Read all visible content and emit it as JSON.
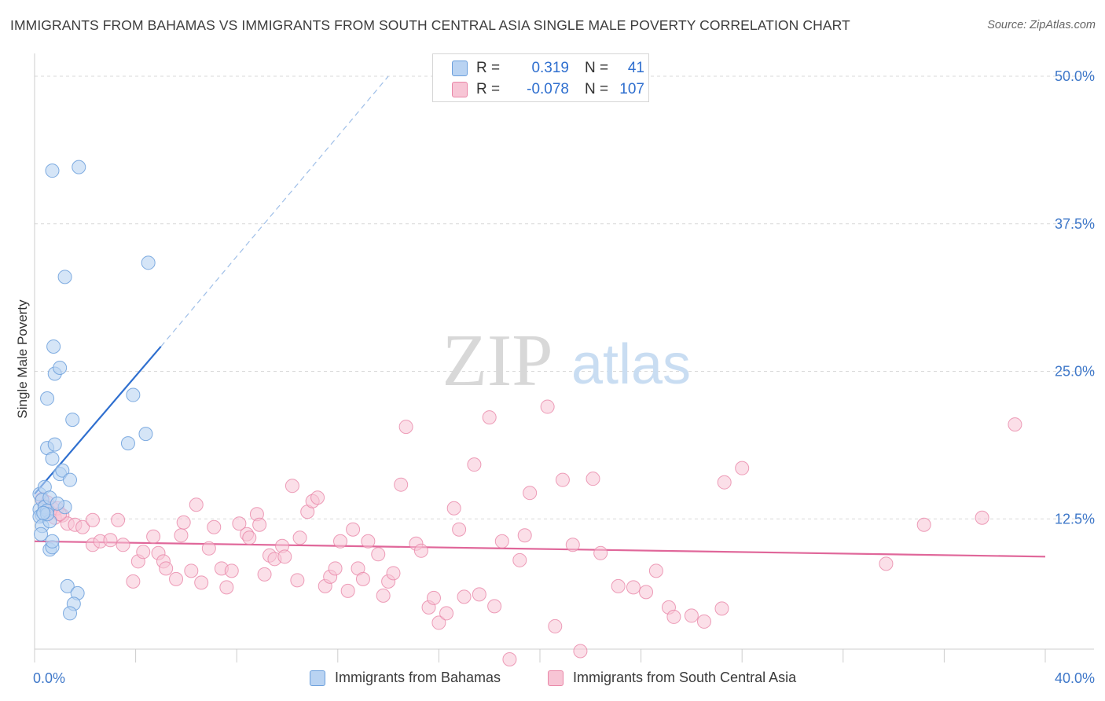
{
  "title": "IMMIGRANTS FROM BAHAMAS VS IMMIGRANTS FROM SOUTH CENTRAL ASIA SINGLE MALE POVERTY CORRELATION CHART",
  "source": "Source: ZipAtlas.com",
  "watermark": {
    "zip": "ZIP",
    "atlas": "atlas"
  },
  "colors": {
    "blue_fill": "#b9d3f2",
    "blue_stroke": "#6b9fdc",
    "blue_line": "#2f6fcf",
    "pink_fill": "#f7c5d5",
    "pink_stroke": "#e986a7",
    "pink_line": "#e0679a",
    "axis_text": "#3f78c9",
    "grid": "#d9d9d9"
  },
  "legend_top": {
    "rows": [
      {
        "series": "blue",
        "r_label": "R =",
        "r_value": "0.319",
        "n_label": "N =",
        "n_value": "41"
      },
      {
        "series": "pink",
        "r_label": "R =",
        "r_value": "-0.078",
        "n_label": "N =",
        "n_value": "107"
      }
    ]
  },
  "legend_bottom": [
    {
      "series": "blue",
      "label": "Immigrants from Bahamas"
    },
    {
      "series": "pink",
      "label": "Immigrants from South Central Asia"
    }
  ],
  "chart_data": {
    "type": "scatter",
    "title": "IMMIGRANTS FROM BAHAMAS VS IMMIGRANTS FROM SOUTH CENTRAL ASIA SINGLE MALE POVERTY CORRELATION CHART",
    "xlabel": "",
    "ylabel": "Single Male Poverty",
    "xlim": [
      0,
      40
    ],
    "ylim": [
      0,
      50
    ],
    "x_tick_labels": [
      {
        "value": 0,
        "label": "0.0%"
      },
      {
        "value": 40,
        "label": "40.0%"
      }
    ],
    "y_tick_labels": [
      {
        "value": 12.5,
        "label": "12.5%"
      },
      {
        "value": 25,
        "label": "25.0%"
      },
      {
        "value": 37.5,
        "label": "37.5%"
      },
      {
        "value": 50,
        "label": "50.0%"
      }
    ],
    "grid": true,
    "legend_position": "top-center",
    "series": [
      {
        "name": "Immigrants from Bahamas",
        "color": "blue",
        "trend": {
          "x": [
            0,
            5.0
          ],
          "y": [
            14.6,
            27.1
          ],
          "dashed_extension_to": [
            14.0,
            50.0
          ]
        },
        "points": [
          [
            0.2,
            14.6
          ],
          [
            0.2,
            13.3
          ],
          [
            0.3,
            12.8
          ],
          [
            0.2,
            12.7
          ],
          [
            0.3,
            11.9
          ],
          [
            0.25,
            11.2
          ],
          [
            0.4,
            15.2
          ],
          [
            0.3,
            14.1
          ],
          [
            0.4,
            13.5
          ],
          [
            0.5,
            13.2
          ],
          [
            0.6,
            12.3
          ],
          [
            0.5,
            12.9
          ],
          [
            0.6,
            9.9
          ],
          [
            0.7,
            10.1
          ],
          [
            0.7,
            10.6
          ],
          [
            0.5,
            18.5
          ],
          [
            0.7,
            17.6
          ],
          [
            0.8,
            18.8
          ],
          [
            0.5,
            22.7
          ],
          [
            0.8,
            24.8
          ],
          [
            0.75,
            27.1
          ],
          [
            1.0,
            25.3
          ],
          [
            1.5,
            20.9
          ],
          [
            1.0,
            16.3
          ],
          [
            1.1,
            16.6
          ],
          [
            1.4,
            15.8
          ],
          [
            1.2,
            13.5
          ],
          [
            0.7,
            42.0
          ],
          [
            1.75,
            42.3
          ],
          [
            1.2,
            33.0
          ],
          [
            4.5,
            34.2
          ],
          [
            3.9,
            23.0
          ],
          [
            4.4,
            19.7
          ],
          [
            3.7,
            18.9
          ],
          [
            1.3,
            6.8
          ],
          [
            1.7,
            6.2
          ],
          [
            1.55,
            5.3
          ],
          [
            1.4,
            4.5
          ],
          [
            0.6,
            14.3
          ],
          [
            0.9,
            13.8
          ],
          [
            0.35,
            13.0
          ]
        ]
      },
      {
        "name": "Immigrants from South Central Asia",
        "color": "pink",
        "trend": {
          "x": [
            0,
            40
          ],
          "y": [
            10.6,
            9.3
          ]
        },
        "points": [
          [
            0.3,
            14.2
          ],
          [
            0.4,
            13.6
          ],
          [
            0.5,
            13.9
          ],
          [
            0.6,
            13.1
          ],
          [
            0.7,
            13.4
          ],
          [
            0.8,
            12.6
          ],
          [
            0.9,
            13.4
          ],
          [
            1.1,
            12.8
          ],
          [
            1.3,
            12.1
          ],
          [
            1.6,
            12.0
          ],
          [
            1.9,
            11.8
          ],
          [
            2.3,
            12.4
          ],
          [
            2.3,
            10.3
          ],
          [
            2.6,
            10.6
          ],
          [
            3.0,
            10.7
          ],
          [
            3.3,
            12.4
          ],
          [
            3.5,
            10.3
          ],
          [
            3.9,
            7.2
          ],
          [
            4.1,
            8.9
          ],
          [
            4.3,
            9.7
          ],
          [
            4.7,
            11.0
          ],
          [
            4.9,
            9.6
          ],
          [
            5.1,
            8.9
          ],
          [
            5.2,
            8.3
          ],
          [
            5.6,
            7.4
          ],
          [
            5.8,
            11.1
          ],
          [
            5.9,
            12.2
          ],
          [
            6.2,
            8.1
          ],
          [
            6.4,
            13.7
          ],
          [
            6.6,
            7.1
          ],
          [
            6.9,
            10.0
          ],
          [
            7.1,
            11.8
          ],
          [
            7.4,
            8.3
          ],
          [
            7.6,
            6.7
          ],
          [
            7.8,
            8.1
          ],
          [
            8.1,
            12.1
          ],
          [
            8.4,
            11.2
          ],
          [
            8.5,
            10.9
          ],
          [
            8.8,
            12.9
          ],
          [
            8.9,
            12.0
          ],
          [
            9.1,
            7.8
          ],
          [
            9.3,
            9.4
          ],
          [
            9.5,
            9.1
          ],
          [
            9.8,
            10.2
          ],
          [
            9.9,
            9.3
          ],
          [
            10.2,
            15.3
          ],
          [
            10.4,
            7.3
          ],
          [
            10.5,
            10.9
          ],
          [
            10.8,
            13.1
          ],
          [
            11.0,
            14.0
          ],
          [
            11.2,
            14.3
          ],
          [
            11.5,
            6.8
          ],
          [
            11.7,
            7.6
          ],
          [
            11.9,
            8.3
          ],
          [
            12.1,
            10.6
          ],
          [
            12.4,
            6.4
          ],
          [
            12.6,
            11.6
          ],
          [
            12.8,
            8.3
          ],
          [
            13.0,
            7.4
          ],
          [
            13.2,
            10.6
          ],
          [
            13.6,
            9.5
          ],
          [
            13.8,
            6.0
          ],
          [
            14.0,
            7.2
          ],
          [
            14.2,
            7.9
          ],
          [
            14.5,
            15.4
          ],
          [
            14.7,
            20.3
          ],
          [
            15.1,
            10.4
          ],
          [
            15.3,
            9.8
          ],
          [
            15.6,
            5.0
          ],
          [
            15.8,
            5.8
          ],
          [
            16.0,
            3.7
          ],
          [
            16.3,
            4.5
          ],
          [
            16.6,
            13.4
          ],
          [
            16.8,
            11.6
          ],
          [
            17.0,
            5.9
          ],
          [
            17.4,
            17.1
          ],
          [
            17.6,
            6.1
          ],
          [
            18.0,
            21.1
          ],
          [
            18.2,
            5.1
          ],
          [
            18.5,
            10.6
          ],
          [
            18.8,
            0.6
          ],
          [
            19.2,
            9.0
          ],
          [
            19.4,
            11.1
          ],
          [
            19.6,
            14.7
          ],
          [
            20.3,
            22.0
          ],
          [
            20.6,
            3.4
          ],
          [
            20.9,
            15.8
          ],
          [
            21.3,
            10.3
          ],
          [
            21.6,
            1.3
          ],
          [
            22.1,
            15.9
          ],
          [
            22.4,
            9.6
          ],
          [
            23.1,
            6.8
          ],
          [
            23.7,
            6.7
          ],
          [
            24.2,
            6.3
          ],
          [
            24.6,
            8.1
          ],
          [
            25.1,
            5.0
          ],
          [
            25.3,
            4.2
          ],
          [
            26.0,
            4.3
          ],
          [
            26.5,
            3.8
          ],
          [
            27.2,
            4.9
          ],
          [
            27.3,
            15.6
          ],
          [
            28.0,
            16.8
          ],
          [
            33.7,
            8.7
          ],
          [
            35.2,
            12.0
          ],
          [
            37.5,
            12.6
          ],
          [
            38.8,
            20.5
          ],
          [
            1.0,
            12.9
          ]
        ]
      }
    ]
  }
}
